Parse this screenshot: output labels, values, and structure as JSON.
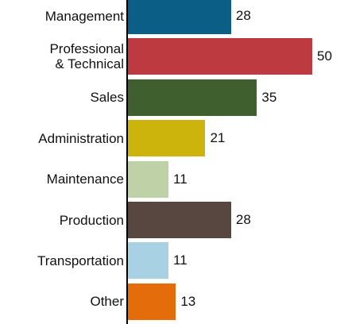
{
  "chart_data": {
    "type": "bar",
    "orientation": "horizontal",
    "categories": [
      "Management",
      "Professional\n& Technical",
      "Sales",
      "Administration",
      "Maintenance",
      "Production",
      "Transportation",
      "Other"
    ],
    "series": [
      {
        "name": null,
        "values": [
          28,
          50,
          35,
          21,
          11,
          28,
          11,
          13
        ],
        "colors": [
          "#0b5f87",
          "#bd3b40",
          "#3f5f2e",
          "#ccb40c",
          "#bfd2a7",
          "#574740",
          "#a8d2e3",
          "#e46c0a"
        ]
      }
    ]
  }
}
